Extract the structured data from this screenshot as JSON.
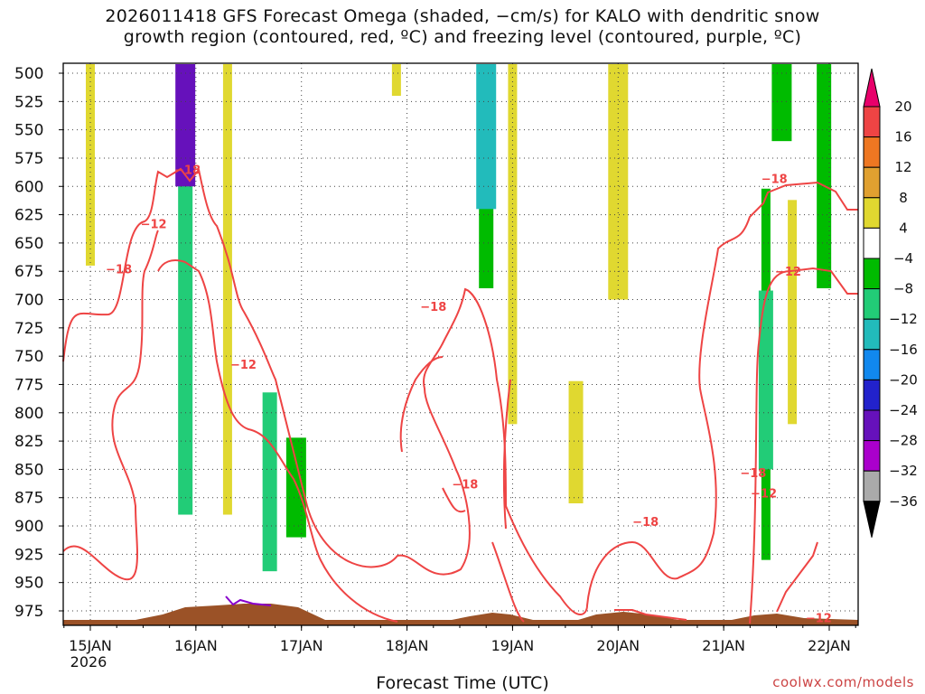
{
  "title": {
    "line1": "2026011418 GFS Forecast Omega (shaded, −cm/s) for KALO with dendritic snow",
    "line2": "growth region (contoured, red, ºC) and freezing level (contoured, purple, ºC)"
  },
  "credit": "coolwx.com/models",
  "chart_data": {
    "type": "heatmap",
    "xlabel": "Forecast Time (UTC)",
    "ylabel": "",
    "x_ticks": [
      "15JAN",
      "16JAN",
      "17JAN",
      "18JAN",
      "19JAN",
      "20JAN",
      "21JAN",
      "22JAN"
    ],
    "x_sub_label": "2026",
    "y_ticks": [
      500,
      525,
      550,
      575,
      600,
      625,
      650,
      675,
      700,
      725,
      750,
      775,
      800,
      825,
      850,
      875,
      900,
      925,
      950,
      975
    ],
    "y_axis_units": "hPa",
    "y_inverted": true,
    "grid": true,
    "colorbar": {
      "labels": [
        "20",
        "16",
        "12",
        "8",
        "4",
        "−4",
        "−8",
        "−12",
        "−16",
        "−20",
        "−24",
        "−28",
        "−32",
        "−36"
      ],
      "colors": [
        "#e8006a",
        "#ee4444",
        "#ee7722",
        "#e0a030",
        "#e0d830",
        "#ffffff",
        "#00bb00",
        "#22cc77",
        "#22bbbb",
        "#1188ee",
        "#2222cc",
        "#6611bb",
        "#aa00cc",
        "#aaaaaa",
        "#000000"
      ]
    },
    "shading": [
      {
        "day": 15.0,
        "p_top": 500,
        "p_bot": 670,
        "value": 5,
        "color": "#e0d830"
      },
      {
        "day": 15.9,
        "p_top": 500,
        "p_bot": 890,
        "value": -10,
        "color": "#22cc77"
      },
      {
        "day": 15.9,
        "p_top": 500,
        "p_bot": 600,
        "value": -25,
        "color": "#6611bb"
      },
      {
        "day": 16.3,
        "p_top": 500,
        "p_bot": 890,
        "value": 5,
        "color": "#e0d830"
      },
      {
        "day": 16.7,
        "p_top": 790,
        "p_bot": 940,
        "value": -10,
        "color": "#22cc77"
      },
      {
        "day": 16.95,
        "p_top": 830,
        "p_bot": 910,
        "value": -6,
        "color": "#00bb00"
      },
      {
        "day": 17.9,
        "p_top": 500,
        "p_bot": 520,
        "value": 5,
        "color": "#e0d830"
      },
      {
        "day": 18.75,
        "p_top": 500,
        "p_bot": 690,
        "value": -6,
        "color": "#00bb00"
      },
      {
        "day": 18.75,
        "p_top": 500,
        "p_bot": 620,
        "value": -12,
        "color": "#22bbbb"
      },
      {
        "day": 19.0,
        "p_top": 500,
        "p_bot": 810,
        "value": 5,
        "color": "#e0d830"
      },
      {
        "day": 19.6,
        "p_top": 780,
        "p_bot": 880,
        "value": 5,
        "color": "#e0d830"
      },
      {
        "day": 20.0,
        "p_top": 500,
        "p_bot": 700,
        "value": 5,
        "color": "#e0d830"
      },
      {
        "day": 21.4,
        "p_top": 610,
        "p_bot": 930,
        "value": -8,
        "color": "#00bb00"
      },
      {
        "day": 21.4,
        "p_top": 700,
        "p_bot": 850,
        "value": -12,
        "color": "#22cc77"
      },
      {
        "day": 21.55,
        "p_top": 500,
        "p_bot": 560,
        "value": -8,
        "color": "#00bb00"
      },
      {
        "day": 21.65,
        "p_top": 620,
        "p_bot": 810,
        "value": 5,
        "color": "#e0d830"
      },
      {
        "day": 21.95,
        "p_top": 500,
        "p_bot": 690,
        "value": -8,
        "color": "#00bb00"
      }
    ],
    "contours": [
      {
        "label": "−18",
        "color": "#ee4444"
      },
      {
        "label": "−12",
        "color": "#ee4444"
      },
      {
        "label": "−12",
        "color": "#ee4444"
      }
    ],
    "contour_labels": [
      {
        "text": "−18",
        "day": 15.92,
        "p": 585
      },
      {
        "text": "−12",
        "day": 15.6,
        "p": 633
      },
      {
        "text": "−18",
        "day": 15.27,
        "p": 673
      },
      {
        "text": "−12",
        "day": 16.45,
        "p": 757
      },
      {
        "text": "−18",
        "day": 18.25,
        "p": 706
      },
      {
        "text": "−18",
        "day": 18.55,
        "p": 863
      },
      {
        "text": "−18",
        "day": 20.26,
        "p": 896
      },
      {
        "text": "−18",
        "day": 21.28,
        "p": 853
      },
      {
        "text": "−12",
        "day": 21.38,
        "p": 871
      },
      {
        "text": "−12",
        "day": 21.9,
        "p": 981
      },
      {
        "text": "−18",
        "day": 21.48,
        "p": 593
      },
      {
        "text": "−12",
        "day": 21.61,
        "p": 675
      }
    ]
  }
}
